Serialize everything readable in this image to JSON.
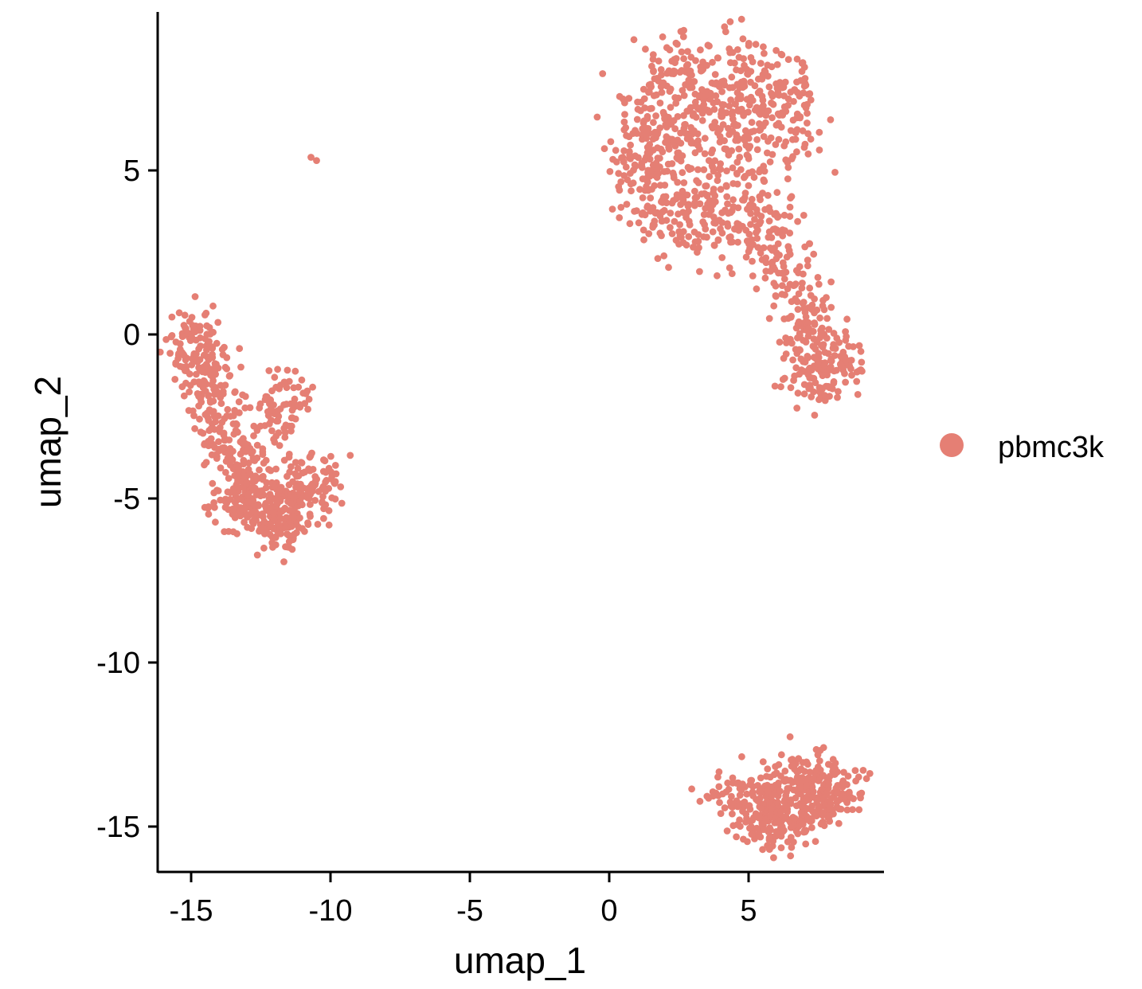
{
  "chart_data": {
    "type": "scatter",
    "title": "",
    "xlabel": "umap_1",
    "ylabel": "umap_2",
    "xlim": [
      -16.5,
      9.3
    ],
    "ylim": [
      -16.8,
      9.8
    ],
    "xticks": [
      -15,
      -10,
      -5,
      0,
      5
    ],
    "yticks": [
      5,
      0,
      -5,
      -10,
      -15
    ],
    "grid": false,
    "legend_position": "right",
    "series": [
      {
        "name": "pbmc3k",
        "color": "#E57F74",
        "clusters": [
          {
            "label": "upper-right main cluster",
            "points": [
              [
                0.7,
                5.6
              ],
              [
                1.0,
                6.2
              ],
              [
                1.2,
                7.0
              ],
              [
                1.5,
                5.3
              ],
              [
                1.8,
                6.8
              ],
              [
                2.0,
                7.6
              ],
              [
                2.2,
                5.9
              ],
              [
                2.5,
                8.0
              ],
              [
                2.7,
                6.4
              ],
              [
                3.0,
                7.8
              ],
              [
                3.2,
                5.5
              ],
              [
                3.5,
                6.9
              ],
              [
                3.7,
                8.1
              ],
              [
                4.0,
                6.1
              ],
              [
                4.2,
                7.4
              ],
              [
                4.5,
                5.8
              ],
              [
                4.7,
                8.4
              ],
              [
                5.0,
                6.6
              ],
              [
                5.2,
                7.3
              ],
              [
                5.5,
                5.9
              ],
              [
                5.8,
                7.9
              ],
              [
                6.0,
                6.3
              ],
              [
                6.3,
                7.6
              ],
              [
                6.6,
                7.0
              ],
              [
                6.8,
                5.9
              ],
              [
                1.3,
                4.6
              ],
              [
                1.6,
                4.0
              ],
              [
                1.9,
                3.4
              ],
              [
                2.2,
                4.3
              ],
              [
                2.6,
                3.8
              ],
              [
                3.0,
                4.6
              ],
              [
                3.4,
                3.2
              ],
              [
                3.8,
                4.1
              ],
              [
                4.2,
                3.0
              ],
              [
                4.6,
                4.3
              ],
              [
                5.0,
                3.6
              ],
              [
                5.4,
                2.8
              ],
              [
                5.8,
                3.3
              ],
              [
                6.2,
                2.6
              ],
              [
                6.5,
                1.9
              ],
              [
                6.7,
                1.2
              ],
              [
                6.9,
                0.6
              ],
              [
                7.1,
                0.1
              ],
              [
                7.3,
                -0.4
              ],
              [
                7.6,
                -0.8
              ],
              [
                7.9,
                -1.1
              ],
              [
                7.7,
                -0.9
              ],
              [
                8.0,
                -1.2
              ],
              [
                7.4,
                -1.0
              ],
              [
                7.8,
                -0.6
              ]
            ]
          },
          {
            "label": "left cluster",
            "points": [
              [
                -15.2,
                -0.2
              ],
              [
                -15.0,
                -0.6
              ],
              [
                -14.8,
                -1.0
              ],
              [
                -14.9,
                0.1
              ],
              [
                -14.5,
                -1.5
              ],
              [
                -14.2,
                -2.1
              ],
              [
                -14.0,
                -2.8
              ],
              [
                -13.8,
                -3.4
              ],
              [
                -13.5,
                -3.9
              ],
              [
                -13.3,
                -4.4
              ],
              [
                -13.0,
                -4.8
              ],
              [
                -12.8,
                -5.2
              ],
              [
                -12.5,
                -5.5
              ],
              [
                -12.2,
                -5.8
              ],
              [
                -11.9,
                -6.0
              ],
              [
                -11.6,
                -5.8
              ],
              [
                -11.3,
                -5.5
              ],
              [
                -11.0,
                -5.2
              ],
              [
                -10.7,
                -4.9
              ],
              [
                -10.4,
                -4.6
              ],
              [
                -10.1,
                -4.4
              ],
              [
                -13.7,
                -4.9
              ],
              [
                -13.2,
                -5.3
              ],
              [
                -12.6,
                -4.6
              ],
              [
                -12.0,
                -5.1
              ],
              [
                -11.5,
                -4.7
              ],
              [
                -11.0,
                -4.5
              ],
              [
                -12.4,
                -3.1
              ],
              [
                -12.0,
                -2.6
              ],
              [
                -11.6,
                -2.1
              ],
              [
                -11.3,
                -1.7
              ],
              [
                -14.3,
                -0.9
              ],
              [
                -14.0,
                -1.6
              ],
              [
                -13.6,
                -3.2
              ]
            ]
          },
          {
            "label": "small outlier",
            "points": [
              [
                -10.7,
                5.4
              ],
              [
                -10.5,
                5.3
              ]
            ]
          },
          {
            "label": "bottom cluster",
            "points": [
              [
                4.2,
                -14.0
              ],
              [
                4.6,
                -14.2
              ],
              [
                5.0,
                -14.5
              ],
              [
                5.3,
                -14.8
              ],
              [
                5.7,
                -15.0
              ],
              [
                6.0,
                -15.1
              ],
              [
                6.4,
                -14.9
              ],
              [
                6.8,
                -14.8
              ],
              [
                7.2,
                -14.6
              ],
              [
                7.6,
                -14.4
              ],
              [
                8.0,
                -14.0
              ],
              [
                8.3,
                -13.7
              ],
              [
                5.5,
                -14.0
              ],
              [
                6.0,
                -13.8
              ],
              [
                6.5,
                -13.5
              ],
              [
                7.0,
                -13.4
              ],
              [
                7.5,
                -13.6
              ],
              [
                8.1,
                -13.9
              ],
              [
                5.8,
                -14.4
              ],
              [
                6.3,
                -14.2
              ],
              [
                6.9,
                -14.1
              ],
              [
                7.4,
                -14.2
              ]
            ]
          }
        ]
      }
    ]
  }
}
